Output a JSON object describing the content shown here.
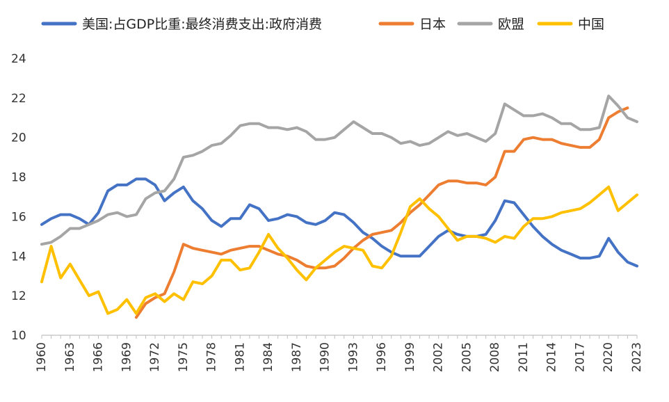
{
  "chart_data": {
    "type": "line",
    "title": "",
    "xlabel": "",
    "ylabel": "",
    "ylim": [
      10,
      24
    ],
    "yticks": [
      10,
      12,
      14,
      16,
      18,
      20,
      22,
      24
    ],
    "xlim": [
      1960,
      2023
    ],
    "xticks": [
      "1960",
      "1963",
      "1966",
      "1969",
      "1972",
      "1975",
      "1978",
      "1981",
      "1984",
      "1987",
      "1990",
      "1993",
      "1996",
      "1999",
      "2002",
      "2005",
      "2008",
      "2011",
      "2014",
      "2017",
      "2020",
      "2023"
    ],
    "grid": false,
    "legend_position": "top",
    "series": [
      {
        "name": "美国:占GDP比重:最终消费支出:政府消费",
        "color": "#4472C4",
        "points": [
          [
            1960,
            15.6
          ],
          [
            1961,
            15.9
          ],
          [
            1962,
            16.1
          ],
          [
            1963,
            16.1
          ],
          [
            1964,
            15.9
          ],
          [
            1965,
            15.6
          ],
          [
            1966,
            16.2
          ],
          [
            1967,
            17.3
          ],
          [
            1968,
            17.6
          ],
          [
            1969,
            17.6
          ],
          [
            1970,
            17.9
          ],
          [
            1971,
            17.9
          ],
          [
            1972,
            17.6
          ],
          [
            1973,
            16.8
          ],
          [
            1974,
            17.2
          ],
          [
            1975,
            17.5
          ],
          [
            1976,
            16.8
          ],
          [
            1977,
            16.4
          ],
          [
            1978,
            15.8
          ],
          [
            1979,
            15.5
          ],
          [
            1980,
            15.9
          ],
          [
            1981,
            15.9
          ],
          [
            1982,
            16.6
          ],
          [
            1983,
            16.4
          ],
          [
            1984,
            15.8
          ],
          [
            1985,
            15.9
          ],
          [
            1986,
            16.1
          ],
          [
            1987,
            16.0
          ],
          [
            1988,
            15.7
          ],
          [
            1989,
            15.6
          ],
          [
            1990,
            15.8
          ],
          [
            1991,
            16.2
          ],
          [
            1992,
            16.1
          ],
          [
            1993,
            15.7
          ],
          [
            1994,
            15.2
          ],
          [
            1995,
            14.9
          ],
          [
            1996,
            14.5
          ],
          [
            1997,
            14.2
          ],
          [
            1998,
            14.0
          ],
          [
            1999,
            14.0
          ],
          [
            2000,
            14.0
          ],
          [
            2001,
            14.5
          ],
          [
            2002,
            15.0
          ],
          [
            2003,
            15.3
          ],
          [
            2004,
            15.1
          ],
          [
            2005,
            15.0
          ],
          [
            2006,
            15.0
          ],
          [
            2007,
            15.1
          ],
          [
            2008,
            15.8
          ],
          [
            2009,
            16.8
          ],
          [
            2010,
            16.7
          ],
          [
            2011,
            16.1
          ],
          [
            2012,
            15.5
          ],
          [
            2013,
            15.0
          ],
          [
            2014,
            14.6
          ],
          [
            2015,
            14.3
          ],
          [
            2016,
            14.1
          ],
          [
            2017,
            13.9
          ],
          [
            2018,
            13.9
          ],
          [
            2019,
            14.0
          ],
          [
            2020,
            14.9
          ],
          [
            2021,
            14.2
          ],
          [
            2022,
            13.7
          ],
          [
            2023,
            13.5
          ]
        ]
      },
      {
        "name": "日本",
        "color": "#ED7D31",
        "points": [
          [
            1970,
            10.9
          ],
          [
            1971,
            11.6
          ],
          [
            1972,
            11.9
          ],
          [
            1973,
            12.1
          ],
          [
            1974,
            13.2
          ],
          [
            1975,
            14.6
          ],
          [
            1976,
            14.4
          ],
          [
            1977,
            14.3
          ],
          [
            1978,
            14.2
          ],
          [
            1979,
            14.1
          ],
          [
            1980,
            14.3
          ],
          [
            1981,
            14.4
          ],
          [
            1982,
            14.5
          ],
          [
            1983,
            14.5
          ],
          [
            1984,
            14.3
          ],
          [
            1985,
            14.1
          ],
          [
            1986,
            14.0
          ],
          [
            1987,
            13.8
          ],
          [
            1988,
            13.5
          ],
          [
            1989,
            13.4
          ],
          [
            1990,
            13.4
          ],
          [
            1991,
            13.5
          ],
          [
            1992,
            13.9
          ],
          [
            1993,
            14.4
          ],
          [
            1994,
            14.8
          ],
          [
            1995,
            15.1
          ],
          [
            1996,
            15.2
          ],
          [
            1997,
            15.3
          ],
          [
            1998,
            15.7
          ],
          [
            1999,
            16.2
          ],
          [
            2000,
            16.6
          ],
          [
            2001,
            17.1
          ],
          [
            2002,
            17.6
          ],
          [
            2003,
            17.8
          ],
          [
            2004,
            17.8
          ],
          [
            2005,
            17.7
          ],
          [
            2006,
            17.7
          ],
          [
            2007,
            17.6
          ],
          [
            2008,
            18.0
          ],
          [
            2009,
            19.3
          ],
          [
            2010,
            19.3
          ],
          [
            2011,
            19.9
          ],
          [
            2012,
            20.0
          ],
          [
            2013,
            19.9
          ],
          [
            2014,
            19.9
          ],
          [
            2015,
            19.7
          ],
          [
            2016,
            19.6
          ],
          [
            2017,
            19.5
          ],
          [
            2018,
            19.5
          ],
          [
            2019,
            19.9
          ],
          [
            2020,
            21.0
          ],
          [
            2021,
            21.3
          ],
          [
            2022,
            21.5
          ]
        ]
      },
      {
        "name": "欧盟",
        "color": "#A5A5A5",
        "points": [
          [
            1960,
            14.6
          ],
          [
            1961,
            14.7
          ],
          [
            1962,
            15.0
          ],
          [
            1963,
            15.4
          ],
          [
            1964,
            15.4
          ],
          [
            1965,
            15.6
          ],
          [
            1966,
            15.8
          ],
          [
            1967,
            16.1
          ],
          [
            1968,
            16.2
          ],
          [
            1969,
            16.0
          ],
          [
            1970,
            16.1
          ],
          [
            1971,
            16.9
          ],
          [
            1972,
            17.2
          ],
          [
            1973,
            17.3
          ],
          [
            1974,
            17.9
          ],
          [
            1975,
            19.0
          ],
          [
            1976,
            19.1
          ],
          [
            1977,
            19.3
          ],
          [
            1978,
            19.6
          ],
          [
            1979,
            19.7
          ],
          [
            1980,
            20.1
          ],
          [
            1981,
            20.6
          ],
          [
            1982,
            20.7
          ],
          [
            1983,
            20.7
          ],
          [
            1984,
            20.5
          ],
          [
            1985,
            20.5
          ],
          [
            1986,
            20.4
          ],
          [
            1987,
            20.5
          ],
          [
            1988,
            20.3
          ],
          [
            1989,
            19.9
          ],
          [
            1990,
            19.9
          ],
          [
            1991,
            20.0
          ],
          [
            1992,
            20.4
          ],
          [
            1993,
            20.8
          ],
          [
            1994,
            20.5
          ],
          [
            1995,
            20.2
          ],
          [
            1996,
            20.2
          ],
          [
            1997,
            20.0
          ],
          [
            1998,
            19.7
          ],
          [
            1999,
            19.8
          ],
          [
            2000,
            19.6
          ],
          [
            2001,
            19.7
          ],
          [
            2002,
            20.0
          ],
          [
            2003,
            20.3
          ],
          [
            2004,
            20.1
          ],
          [
            2005,
            20.2
          ],
          [
            2006,
            20.0
          ],
          [
            2007,
            19.8
          ],
          [
            2008,
            20.2
          ],
          [
            2009,
            21.7
          ],
          [
            2010,
            21.4
          ],
          [
            2011,
            21.1
          ],
          [
            2012,
            21.1
          ],
          [
            2013,
            21.2
          ],
          [
            2014,
            21.0
          ],
          [
            2015,
            20.7
          ],
          [
            2016,
            20.7
          ],
          [
            2017,
            20.4
          ],
          [
            2018,
            20.4
          ],
          [
            2019,
            20.5
          ],
          [
            2020,
            22.1
          ],
          [
            2021,
            21.6
          ],
          [
            2022,
            21.0
          ],
          [
            2023,
            20.8
          ]
        ]
      },
      {
        "name": "中国",
        "color": "#FFC000",
        "points": [
          [
            1960,
            12.7
          ],
          [
            1961,
            14.5
          ],
          [
            1962,
            12.9
          ],
          [
            1963,
            13.6
          ],
          [
            1964,
            12.8
          ],
          [
            1965,
            12.0
          ],
          [
            1966,
            12.2
          ],
          [
            1967,
            11.1
          ],
          [
            1968,
            11.3
          ],
          [
            1969,
            11.8
          ],
          [
            1970,
            11.1
          ],
          [
            1971,
            11.9
          ],
          [
            1972,
            12.1
          ],
          [
            1973,
            11.7
          ],
          [
            1974,
            12.1
          ],
          [
            1975,
            11.8
          ],
          [
            1976,
            12.7
          ],
          [
            1977,
            12.6
          ],
          [
            1978,
            13.0
          ],
          [
            1979,
            13.8
          ],
          [
            1980,
            13.8
          ],
          [
            1981,
            13.3
          ],
          [
            1982,
            13.4
          ],
          [
            1983,
            14.2
          ],
          [
            1984,
            15.1
          ],
          [
            1985,
            14.4
          ],
          [
            1986,
            13.9
          ],
          [
            1987,
            13.3
          ],
          [
            1988,
            12.8
          ],
          [
            1989,
            13.4
          ],
          [
            1990,
            13.8
          ],
          [
            1991,
            14.2
          ],
          [
            1992,
            14.5
          ],
          [
            1993,
            14.4
          ],
          [
            1994,
            14.3
          ],
          [
            1995,
            13.5
          ],
          [
            1996,
            13.4
          ],
          [
            1997,
            14.0
          ],
          [
            1998,
            15.2
          ],
          [
            1999,
            16.5
          ],
          [
            2000,
            16.9
          ],
          [
            2001,
            16.4
          ],
          [
            2002,
            16.0
          ],
          [
            2003,
            15.4
          ],
          [
            2004,
            14.8
          ],
          [
            2005,
            15.0
          ],
          [
            2006,
            15.0
          ],
          [
            2007,
            14.9
          ],
          [
            2008,
            14.7
          ],
          [
            2009,
            15.0
          ],
          [
            2010,
            14.9
          ],
          [
            2011,
            15.5
          ],
          [
            2012,
            15.9
          ],
          [
            2013,
            15.9
          ],
          [
            2014,
            16.0
          ],
          [
            2015,
            16.2
          ],
          [
            2016,
            16.3
          ],
          [
            2017,
            16.4
          ],
          [
            2018,
            16.7
          ],
          [
            2019,
            17.1
          ],
          [
            2020,
            17.5
          ],
          [
            2021,
            16.3
          ],
          [
            2022,
            16.7
          ],
          [
            2023,
            17.1
          ]
        ]
      }
    ]
  }
}
